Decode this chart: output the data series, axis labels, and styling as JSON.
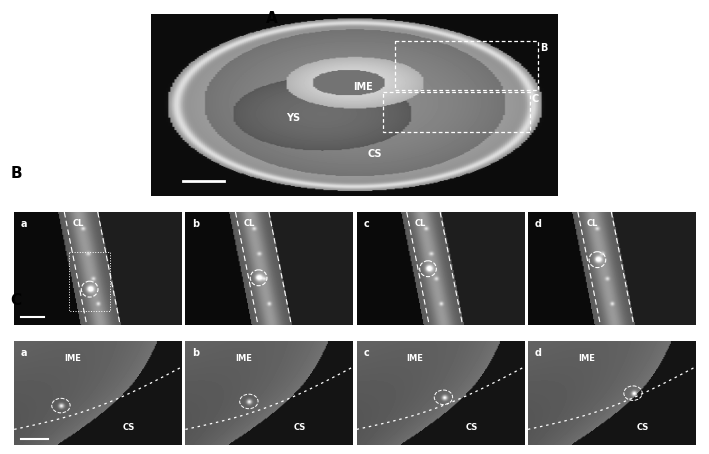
{
  "fig_width": 7.09,
  "fig_height": 4.54,
  "dpi": 100,
  "bg_color": "#ffffff",
  "panel_A_label": "A",
  "panel_B_label": "B",
  "panel_C_label": "C",
  "panel_B_sublabels": [
    "a",
    "b",
    "c",
    "d"
  ],
  "panel_C_sublabels": [
    "a",
    "b",
    "c",
    "d"
  ],
  "text_color_white": "#ffffff",
  "text_color_black": "#000000"
}
